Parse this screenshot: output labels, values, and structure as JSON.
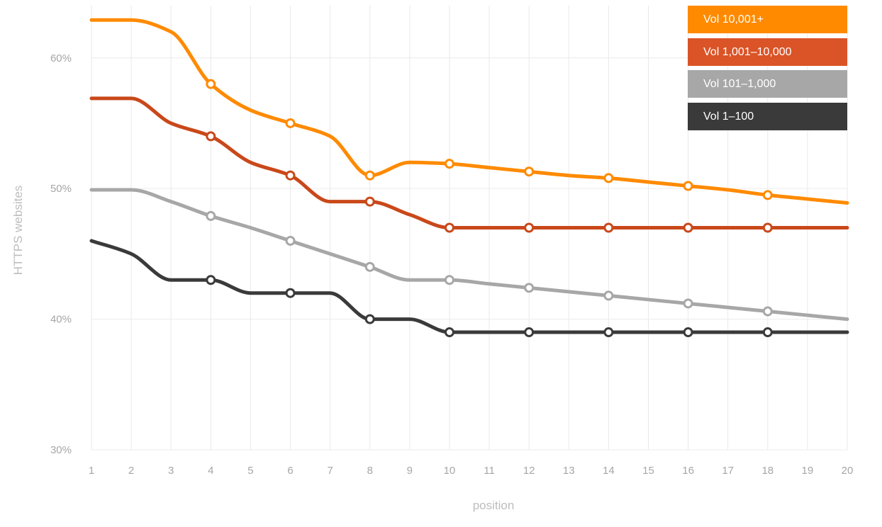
{
  "chart_data": {
    "type": "line",
    "title": "",
    "xlabel": "position",
    "ylabel": "HTTPS websites",
    "x": [
      1,
      2,
      3,
      4,
      5,
      6,
      7,
      8,
      9,
      10,
      11,
      12,
      13,
      14,
      15,
      16,
      17,
      18,
      19,
      20
    ],
    "xlim": [
      1,
      20
    ],
    "ylim": [
      30,
      64
    ],
    "yticks": [
      {
        "value": 30,
        "label": "30%"
      },
      {
        "value": 40,
        "label": "40%"
      },
      {
        "value": 50,
        "label": "50%"
      },
      {
        "value": 60,
        "label": "60%"
      }
    ],
    "grid": true,
    "legend_position": "top-right",
    "series": [
      {
        "name": "Vol 10,001+",
        "color": "#FF8A00",
        "points": [
          [
            1,
            62.9
          ],
          [
            2,
            62.9
          ],
          [
            3,
            62
          ],
          [
            4,
            58
          ],
          [
            5,
            56
          ],
          [
            6,
            55
          ],
          [
            7,
            54
          ],
          [
            8,
            51
          ],
          [
            9,
            52
          ],
          [
            10,
            51.9
          ],
          [
            11,
            51.6
          ],
          [
            12,
            51.3
          ],
          [
            13,
            51
          ],
          [
            14,
            50.8
          ],
          [
            15,
            50.5
          ],
          [
            16,
            50.2
          ],
          [
            17,
            49.9
          ],
          [
            18,
            49.5
          ],
          [
            19,
            49.2
          ],
          [
            20,
            48.9
          ]
        ],
        "markers": [
          4,
          6,
          8,
          10,
          12,
          14,
          16,
          18
        ]
      },
      {
        "name": "Vol 1,001–10,000",
        "color": "#C9481A",
        "legend_color": "#DA5427",
        "points": [
          [
            1,
            56.9
          ],
          [
            2,
            56.9
          ],
          [
            3,
            55
          ],
          [
            4,
            54
          ],
          [
            5,
            52
          ],
          [
            6,
            51
          ],
          [
            7,
            49
          ],
          [
            8,
            49
          ],
          [
            9,
            48
          ],
          [
            10,
            47
          ],
          [
            11,
            47
          ],
          [
            12,
            47
          ],
          [
            13,
            47
          ],
          [
            14,
            47
          ],
          [
            15,
            47
          ],
          [
            16,
            47
          ],
          [
            17,
            47
          ],
          [
            18,
            47
          ],
          [
            19,
            47
          ],
          [
            20,
            47
          ]
        ],
        "markers": [
          4,
          6,
          8,
          10,
          12,
          14,
          16,
          18
        ]
      },
      {
        "name": "Vol 101–1,000",
        "color": "#A7A7A7",
        "points": [
          [
            1,
            49.9
          ],
          [
            2,
            49.9
          ],
          [
            3,
            49
          ],
          [
            4,
            47.9
          ],
          [
            5,
            47
          ],
          [
            6,
            46
          ],
          [
            7,
            45
          ],
          [
            8,
            44
          ],
          [
            9,
            43
          ],
          [
            10,
            43
          ],
          [
            11,
            42.7
          ],
          [
            12,
            42.4
          ],
          [
            13,
            42.1
          ],
          [
            14,
            41.8
          ],
          [
            15,
            41.5
          ],
          [
            16,
            41.2
          ],
          [
            17,
            40.9
          ],
          [
            18,
            40.6
          ],
          [
            19,
            40.3
          ],
          [
            20,
            40
          ]
        ],
        "markers": [
          4,
          6,
          8,
          10,
          12,
          14,
          16,
          18
        ]
      },
      {
        "name": "Vol 1–100",
        "color": "#3A3A3A",
        "points": [
          [
            1,
            46
          ],
          [
            2,
            45
          ],
          [
            3,
            43
          ],
          [
            4,
            43
          ],
          [
            5,
            42
          ],
          [
            6,
            42
          ],
          [
            7,
            42
          ],
          [
            8,
            40
          ],
          [
            9,
            40
          ],
          [
            10,
            39
          ],
          [
            11,
            39
          ],
          [
            12,
            39
          ],
          [
            13,
            39
          ],
          [
            14,
            39
          ],
          [
            15,
            39
          ],
          [
            16,
            39
          ],
          [
            17,
            39
          ],
          [
            18,
            39
          ],
          [
            19,
            39
          ],
          [
            20,
            39
          ]
        ],
        "markers": [
          4,
          6,
          8,
          10,
          12,
          14,
          16,
          18
        ]
      }
    ]
  }
}
